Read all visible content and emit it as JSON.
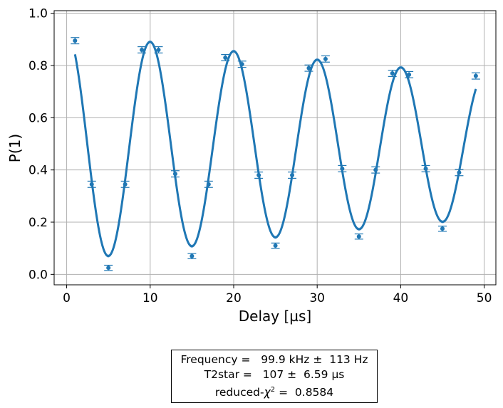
{
  "chart_data": {
    "type": "scatter",
    "xlabel": "Delay [µs]",
    "ylabel": "P(1)",
    "xlim": [
      -1.5,
      51.4
    ],
    "ylim": [
      -0.04,
      1.01
    ],
    "xticks": [
      0,
      10,
      20,
      30,
      40,
      50
    ],
    "yticks": [
      0.0,
      0.2,
      0.4,
      0.6,
      0.8,
      1.0
    ],
    "xtick_labels": [
      "0",
      "10",
      "20",
      "30",
      "40",
      "50"
    ],
    "ytick_labels": [
      "0.0",
      "0.2",
      "0.4",
      "0.6",
      "0.8",
      "1.0"
    ],
    "grid": true,
    "colors": {
      "series": "#1f77b4",
      "band": "#9ec3e6",
      "grid": "#b0b0b0"
    },
    "series": [
      {
        "type": "scatter_errorbar",
        "x": [
          1,
          3,
          5,
          7,
          9,
          11,
          13,
          15,
          17,
          19,
          21,
          23,
          25,
          27,
          29,
          31,
          33,
          35,
          37,
          39,
          41,
          43,
          45,
          47,
          49
        ],
        "y": [
          0.895,
          0.345,
          0.025,
          0.345,
          0.86,
          0.86,
          0.385,
          0.07,
          0.345,
          0.83,
          0.805,
          0.38,
          0.11,
          0.38,
          0.79,
          0.825,
          0.405,
          0.145,
          0.4,
          0.77,
          0.765,
          0.405,
          0.175,
          0.39,
          0.76
        ],
        "yerr": [
          0.012,
          0.012,
          0.01,
          0.012,
          0.012,
          0.012,
          0.012,
          0.01,
          0.012,
          0.012,
          0.012,
          0.012,
          0.01,
          0.012,
          0.012,
          0.012,
          0.012,
          0.01,
          0.012,
          0.012,
          0.012,
          0.012,
          0.01,
          0.012,
          0.012
        ]
      },
      {
        "type": "fit_line",
        "model": "A*exp(-t/T2star)*cos(2*pi*f*t)+B",
        "params": {
          "A": 0.44,
          "B": 0.49,
          "f_kHz": 99.9,
          "T2star_us": 107
        },
        "x_range": [
          1,
          49
        ]
      }
    ]
  },
  "fit_report": {
    "line1": "Frequency =   99.9 kHz ±  113 Hz",
    "line2": "T2star =   107 ±  6.59 µs",
    "line3_prefix": "reduced-",
    "line3_chi": "χ",
    "line3_sup": "2",
    "line3_suffix": " =  0.8584"
  }
}
